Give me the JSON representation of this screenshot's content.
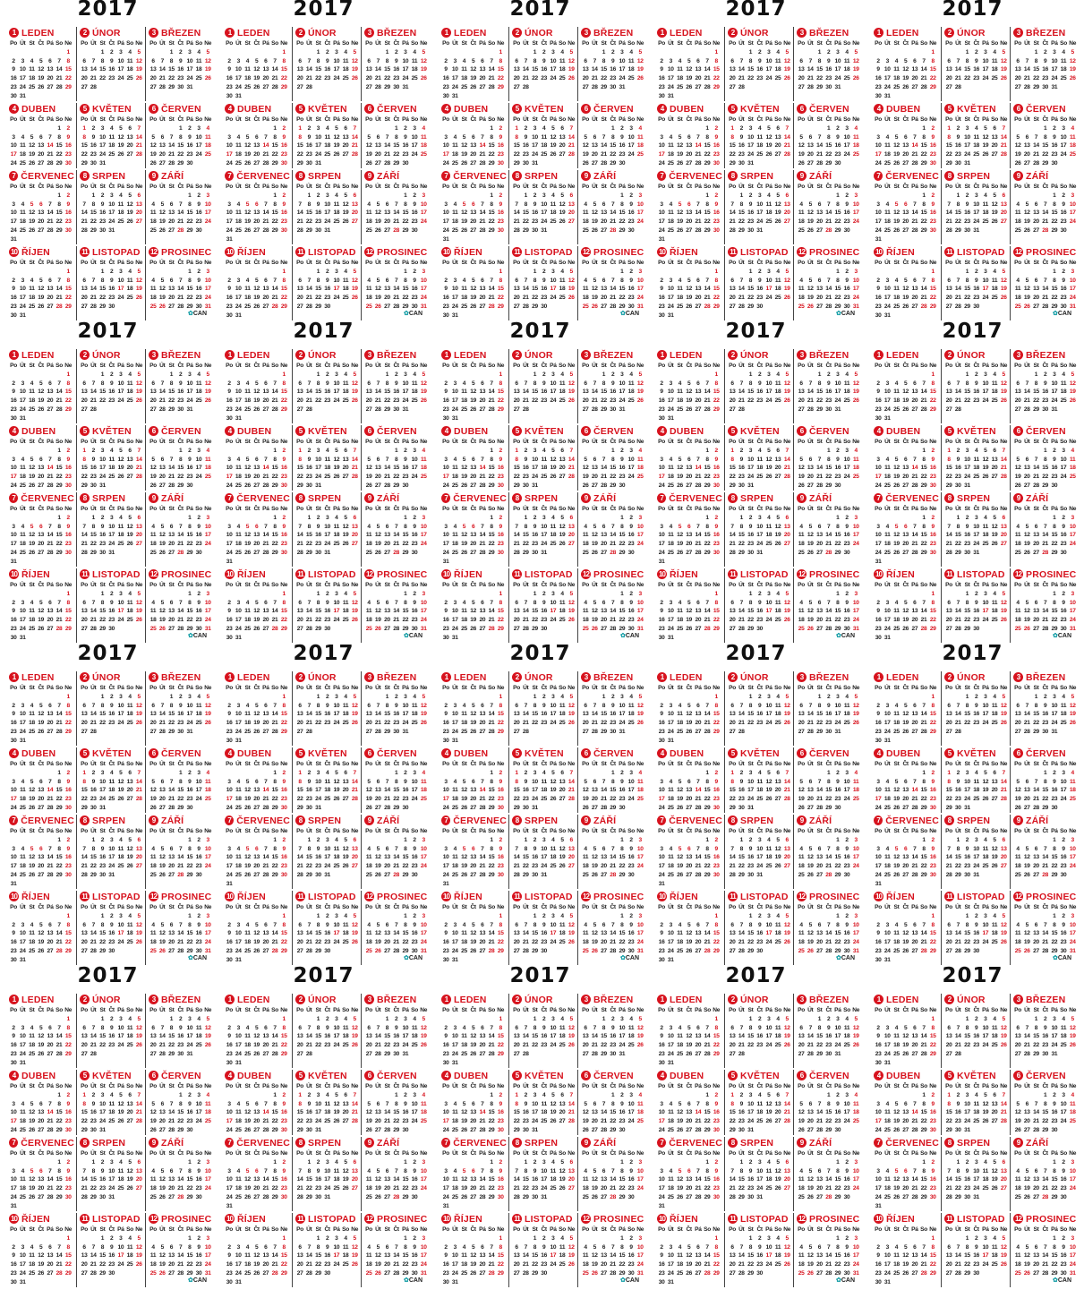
{
  "sheet": {
    "year": "2017",
    "copies": 20,
    "grid_columns": 5,
    "grid_rows": 4,
    "weekday_headers": [
      "Po",
      "Út",
      "St",
      "Čt",
      "Pá",
      "So",
      "Ne"
    ],
    "months": [
      {
        "number": "1",
        "name": "LEDEN",
        "days": 31,
        "first_weekday": 7
      },
      {
        "number": "2",
        "name": "ÚNOR",
        "days": 28,
        "first_weekday": 3
      },
      {
        "number": "3",
        "name": "BŘEZEN",
        "days": 31,
        "first_weekday": 3
      },
      {
        "number": "4",
        "name": "DUBEN",
        "days": 30,
        "first_weekday": 6
      },
      {
        "number": "5",
        "name": "KVĚTEN",
        "days": 31,
        "first_weekday": 1
      },
      {
        "number": "6",
        "name": "ČERVEN",
        "days": 30,
        "first_weekday": 4
      },
      {
        "number": "7",
        "name": "ČERVENEC",
        "days": 31,
        "first_weekday": 6
      },
      {
        "number": "8",
        "name": "SRPEN",
        "days": 31,
        "first_weekday": 2
      },
      {
        "number": "9",
        "name": "ZÁŘÍ",
        "days": 30,
        "first_weekday": 5
      },
      {
        "number": "10",
        "name": "ŘÍJEN",
        "days": 31,
        "first_weekday": 7
      },
      {
        "number": "11",
        "name": "LISTOPAD",
        "days": 30,
        "first_weekday": 3
      },
      {
        "number": "12",
        "name": "PROSINEC",
        "days": 31,
        "first_weekday": 5
      }
    ],
    "holidays": {
      "1": [
        1
      ],
      "4": [
        14,
        17
      ],
      "5": [
        1,
        8
      ],
      "7": [
        5,
        6
      ],
      "9": [
        28
      ],
      "10": [
        28
      ],
      "11": [
        17
      ],
      "12": [
        24,
        25,
        26
      ]
    },
    "logo_text": "CAN",
    "colors": {
      "accent": "#d7131e",
      "text": "#222222",
      "logo": "#1aa0a8"
    }
  }
}
